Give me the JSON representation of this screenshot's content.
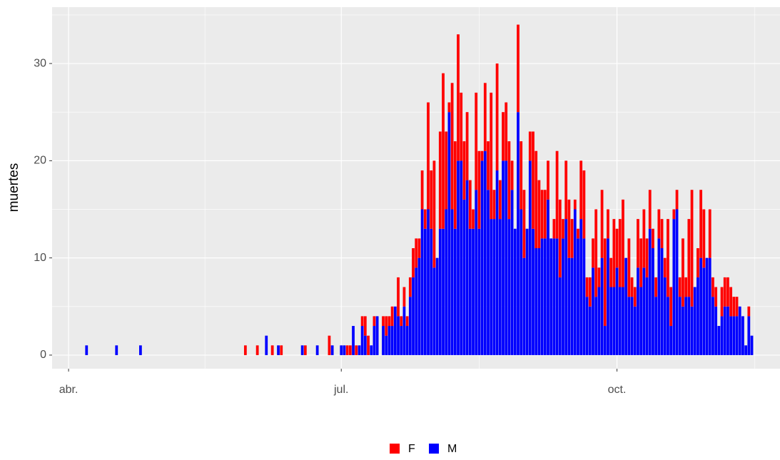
{
  "chart_data": {
    "type": "stacked-bar",
    "y_label": "muertes",
    "x": [
      97,
      107,
      115,
      150,
      154,
      157,
      159,
      161,
      162,
      169,
      170,
      174,
      178,
      179,
      182,
      183,
      184,
      185,
      186,
      187,
      188,
      189,
      190,
      191,
      192,
      193,
      194,
      196,
      197,
      198,
      199,
      200,
      201,
      202,
      203,
      204,
      205,
      206,
      207,
      208,
      209,
      210,
      211,
      212,
      213,
      214,
      215,
      216,
      217,
      218,
      219,
      220,
      221,
      222,
      223,
      224,
      225,
      226,
      227,
      228,
      229,
      230,
      231,
      232,
      233,
      234,
      235,
      236,
      237,
      238,
      239,
      240,
      241,
      242,
      243,
      244,
      245,
      246,
      247,
      248,
      249,
      250,
      251,
      252,
      253,
      254,
      255,
      256,
      257,
      258,
      259,
      260,
      261,
      262,
      263,
      264,
      265,
      266,
      267,
      268,
      269,
      270,
      271,
      272,
      273,
      274,
      275,
      276,
      277,
      278,
      279,
      280,
      281,
      282,
      283,
      284,
      285,
      286,
      287,
      288,
      289,
      290,
      291,
      292,
      293,
      294,
      295,
      296,
      297,
      298,
      299,
      300,
      301,
      302,
      303,
      304,
      305,
      306,
      307,
      308,
      309,
      310,
      311,
      312,
      313,
      314,
      315,
      316,
      317,
      318,
      319
    ],
    "series": [
      {
        "name": "F",
        "color": "#ff0000",
        "values": [
          0,
          0,
          0,
          1,
          1,
          0,
          1,
          0,
          1,
          0,
          1,
          0,
          2,
          0,
          0,
          0,
          1,
          1,
          0,
          1,
          0,
          1,
          2,
          2,
          0,
          1,
          0,
          1,
          2,
          1,
          2,
          0,
          4,
          1,
          2,
          1,
          2,
          3,
          3,
          2,
          4,
          2,
          11,
          6,
          11,
          0,
          10,
          16,
          8,
          1,
          13,
          9,
          13,
          7,
          6,
          7,
          5,
          2,
          10,
          8,
          1,
          7,
          5,
          13,
          3,
          11,
          4,
          5,
          6,
          8,
          3,
          0,
          9,
          7,
          7,
          0,
          3,
          10,
          10,
          7,
          5,
          5,
          4,
          0,
          2,
          9,
          8,
          2,
          6,
          6,
          4,
          1,
          1,
          6,
          7,
          2,
          3,
          3,
          9,
          2,
          7,
          9,
          3,
          3,
          7,
          4,
          7,
          9,
          0,
          6,
          2,
          2,
          5,
          5,
          6,
          4,
          4,
          2,
          2,
          3,
          3,
          2,
          8,
          4,
          1,
          2,
          2,
          7,
          2,
          8,
          12,
          0,
          3,
          7,
          6,
          0,
          5,
          2,
          2,
          0,
          3,
          3,
          3,
          3,
          2,
          2,
          0,
          0,
          0,
          1,
          0
        ]
      },
      {
        "name": "M",
        "color": "#0000ff",
        "values": [
          1,
          1,
          1,
          0,
          0,
          2,
          0,
          1,
          0,
          1,
          0,
          1,
          0,
          1,
          1,
          1,
          0,
          0,
          3,
          0,
          1,
          3,
          2,
          0,
          1,
          3,
          4,
          3,
          2,
          3,
          3,
          5,
          4,
          3,
          5,
          3,
          6,
          8,
          9,
          10,
          15,
          13,
          15,
          13,
          9,
          10,
          13,
          13,
          15,
          25,
          15,
          13,
          20,
          20,
          16,
          18,
          13,
          13,
          17,
          13,
          20,
          21,
          17,
          14,
          14,
          19,
          14,
          20,
          20,
          14,
          17,
          13,
          25,
          15,
          10,
          13,
          20,
          13,
          11,
          11,
          12,
          12,
          16,
          12,
          12,
          12,
          8,
          12,
          14,
          10,
          10,
          15,
          12,
          14,
          12,
          6,
          5,
          9,
          6,
          7,
          10,
          3,
          12,
          7,
          7,
          9,
          7,
          7,
          10,
          6,
          6,
          5,
          9,
          7,
          9,
          8,
          13,
          11,
          6,
          12,
          11,
          8,
          6,
          3,
          14,
          15,
          6,
          5,
          6,
          6,
          5,
          7,
          8,
          10,
          9,
          10,
          10,
          6,
          5,
          3,
          4,
          5,
          5,
          4,
          4,
          4,
          5,
          4,
          1,
          4,
          2
        ]
      }
    ],
    "xlim": [
      85.5,
      328.4
    ],
    "xticks": [
      {
        "value": 91,
        "label": "abr."
      },
      {
        "value": 182,
        "label": "jul."
      },
      {
        "value": 274,
        "label": "oct."
      }
    ],
    "ylim": [
      -1.4,
      35.8
    ],
    "yticks": [
      0,
      10,
      20,
      30
    ],
    "grid": true,
    "legend": "bottom"
  }
}
